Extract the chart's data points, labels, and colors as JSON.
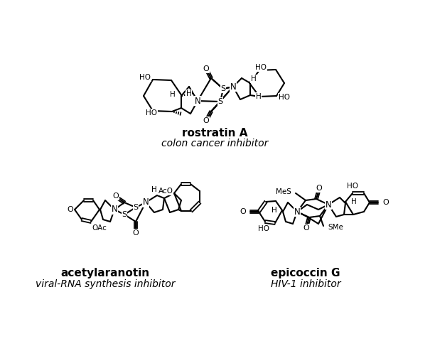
{
  "title1": "rostratin A",
  "subtitle1": "colon cancer inhibitor",
  "title2": "acetylaranotin",
  "subtitle2": "viral-RNA synthesis inhibitor",
  "title3": "epicoccin G",
  "subtitle3": "HIV-1 inhibitor",
  "bg_color": "#ffffff",
  "text_color": "#000000",
  "title_fontsize": 11,
  "subtitle_fontsize": 10
}
